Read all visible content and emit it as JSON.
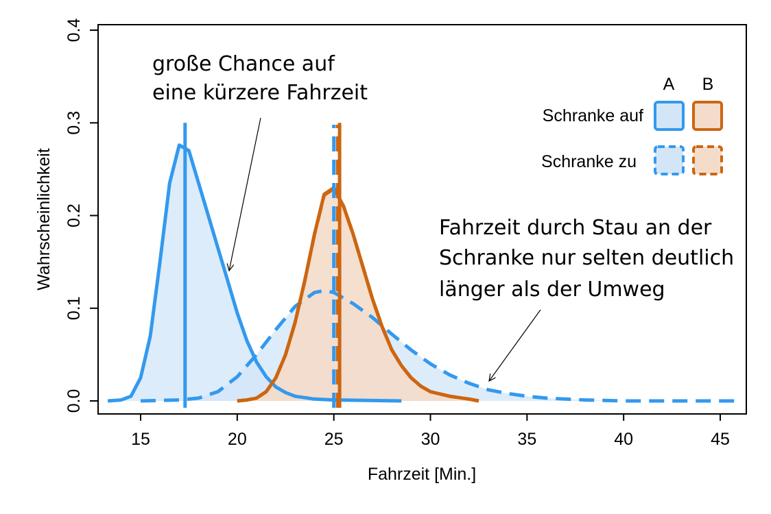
{
  "chart_data": {
    "type": "area",
    "xlabel": "Fahrzeit [Min.]",
    "ylabel": "Wahrscheinlichkeit",
    "xlim": [
      13,
      46
    ],
    "ylim": [
      0,
      0.4
    ],
    "x_ticks": [
      "15",
      "20",
      "25",
      "30",
      "35",
      "40",
      "45"
    ],
    "y_ticks": [
      "0.0",
      "0.1",
      "0.2",
      "0.3",
      "0.4"
    ],
    "grid": false,
    "legend": {
      "placement": "top-right",
      "column_headers": [
        "A",
        "B"
      ],
      "row_labels": [
        "Schranke auf",
        "Schranke zu"
      ]
    },
    "colors": {
      "A": "#3399ee",
      "B": "#cc6611",
      "A_fill": "#d2e6f8",
      "B_fill": "#f4dccb"
    },
    "series": [
      {
        "group": "A",
        "condition": "Schranke auf",
        "line": "solid",
        "x_vline": 17.3,
        "points": [
          [
            13.3,
            0.0
          ],
          [
            14,
            0.001
          ],
          [
            14.5,
            0.005
          ],
          [
            15,
            0.025
          ],
          [
            15.5,
            0.07
          ],
          [
            16,
            0.15
          ],
          [
            16.5,
            0.235
          ],
          [
            17,
            0.276
          ],
          [
            17.5,
            0.27
          ],
          [
            18,
            0.235
          ],
          [
            18.5,
            0.2
          ],
          [
            19,
            0.165
          ],
          [
            19.5,
            0.13
          ],
          [
            20,
            0.095
          ],
          [
            20.5,
            0.065
          ],
          [
            21,
            0.042
          ],
          [
            21.5,
            0.026
          ],
          [
            22,
            0.015
          ],
          [
            22.5,
            0.009
          ],
          [
            23,
            0.005
          ],
          [
            24,
            0.002
          ],
          [
            25,
            0.001
          ],
          [
            28.5,
            0.0
          ]
        ]
      },
      {
        "group": "A",
        "condition": "Schranke zu",
        "line": "dashed",
        "x_vline": 25.0,
        "points": [
          [
            15,
            0.0
          ],
          [
            17,
            0.001
          ],
          [
            18,
            0.003
          ],
          [
            19,
            0.01
          ],
          [
            20,
            0.026
          ],
          [
            21,
            0.05
          ],
          [
            22,
            0.077
          ],
          [
            23,
            0.102
          ],
          [
            24,
            0.117
          ],
          [
            24.5,
            0.119
          ],
          [
            25,
            0.117
          ],
          [
            26,
            0.105
          ],
          [
            27,
            0.09
          ],
          [
            28,
            0.072
          ],
          [
            29,
            0.055
          ],
          [
            30,
            0.04
          ],
          [
            31,
            0.028
          ],
          [
            32,
            0.019
          ],
          [
            33,
            0.012
          ],
          [
            34,
            0.008
          ],
          [
            35,
            0.005
          ],
          [
            36,
            0.003
          ],
          [
            38,
            0.001
          ],
          [
            40,
            0.0
          ],
          [
            46,
            0.0
          ]
        ]
      },
      {
        "group": "B",
        "condition": "Schranke auf",
        "line": "solid",
        "x_vline": 25.3,
        "points": [
          [
            20,
            0.0
          ],
          [
            20.5,
            0.001
          ],
          [
            21,
            0.003
          ],
          [
            21.5,
            0.01
          ],
          [
            22,
            0.025
          ],
          [
            22.5,
            0.05
          ],
          [
            23,
            0.085
          ],
          [
            23.5,
            0.13
          ],
          [
            24,
            0.18
          ],
          [
            24.5,
            0.223
          ],
          [
            25,
            0.23
          ],
          [
            25.5,
            0.21
          ],
          [
            26,
            0.18
          ],
          [
            26.5,
            0.145
          ],
          [
            27,
            0.11
          ],
          [
            27.5,
            0.08
          ],
          [
            28,
            0.055
          ],
          [
            28.5,
            0.038
          ],
          [
            29,
            0.025
          ],
          [
            29.5,
            0.016
          ],
          [
            30,
            0.01
          ],
          [
            31,
            0.005
          ],
          [
            32,
            0.002
          ],
          [
            32.5,
            0.0
          ]
        ]
      },
      {
        "group": "B",
        "condition": "Schranke zu",
        "line": "dashed",
        "x_vline": 25.2,
        "points": [
          [
            20,
            0.0
          ],
          [
            20.5,
            0.001
          ],
          [
            21,
            0.003
          ],
          [
            21.5,
            0.01
          ],
          [
            22,
            0.025
          ],
          [
            22.5,
            0.05
          ],
          [
            23,
            0.085
          ],
          [
            23.5,
            0.13
          ],
          [
            24,
            0.18
          ],
          [
            24.5,
            0.222
          ],
          [
            25,
            0.229
          ],
          [
            25.5,
            0.21
          ],
          [
            26,
            0.18
          ],
          [
            26.5,
            0.145
          ],
          [
            27,
            0.11
          ],
          [
            27.5,
            0.08
          ],
          [
            28,
            0.055
          ],
          [
            28.5,
            0.038
          ],
          [
            29,
            0.025
          ],
          [
            29.5,
            0.016
          ],
          [
            30,
            0.01
          ],
          [
            31,
            0.005
          ],
          [
            32,
            0.002
          ],
          [
            32.5,
            0.0
          ]
        ]
      }
    ],
    "annotations": [
      {
        "lines": [
          "große Chance auf",
          "eine kürzere Fahrzeit"
        ]
      },
      {
        "lines": [
          "Fahrzeit durch Stau an der",
          "Schranke nur selten deutlich",
          "länger als der Umweg"
        ]
      }
    ]
  }
}
